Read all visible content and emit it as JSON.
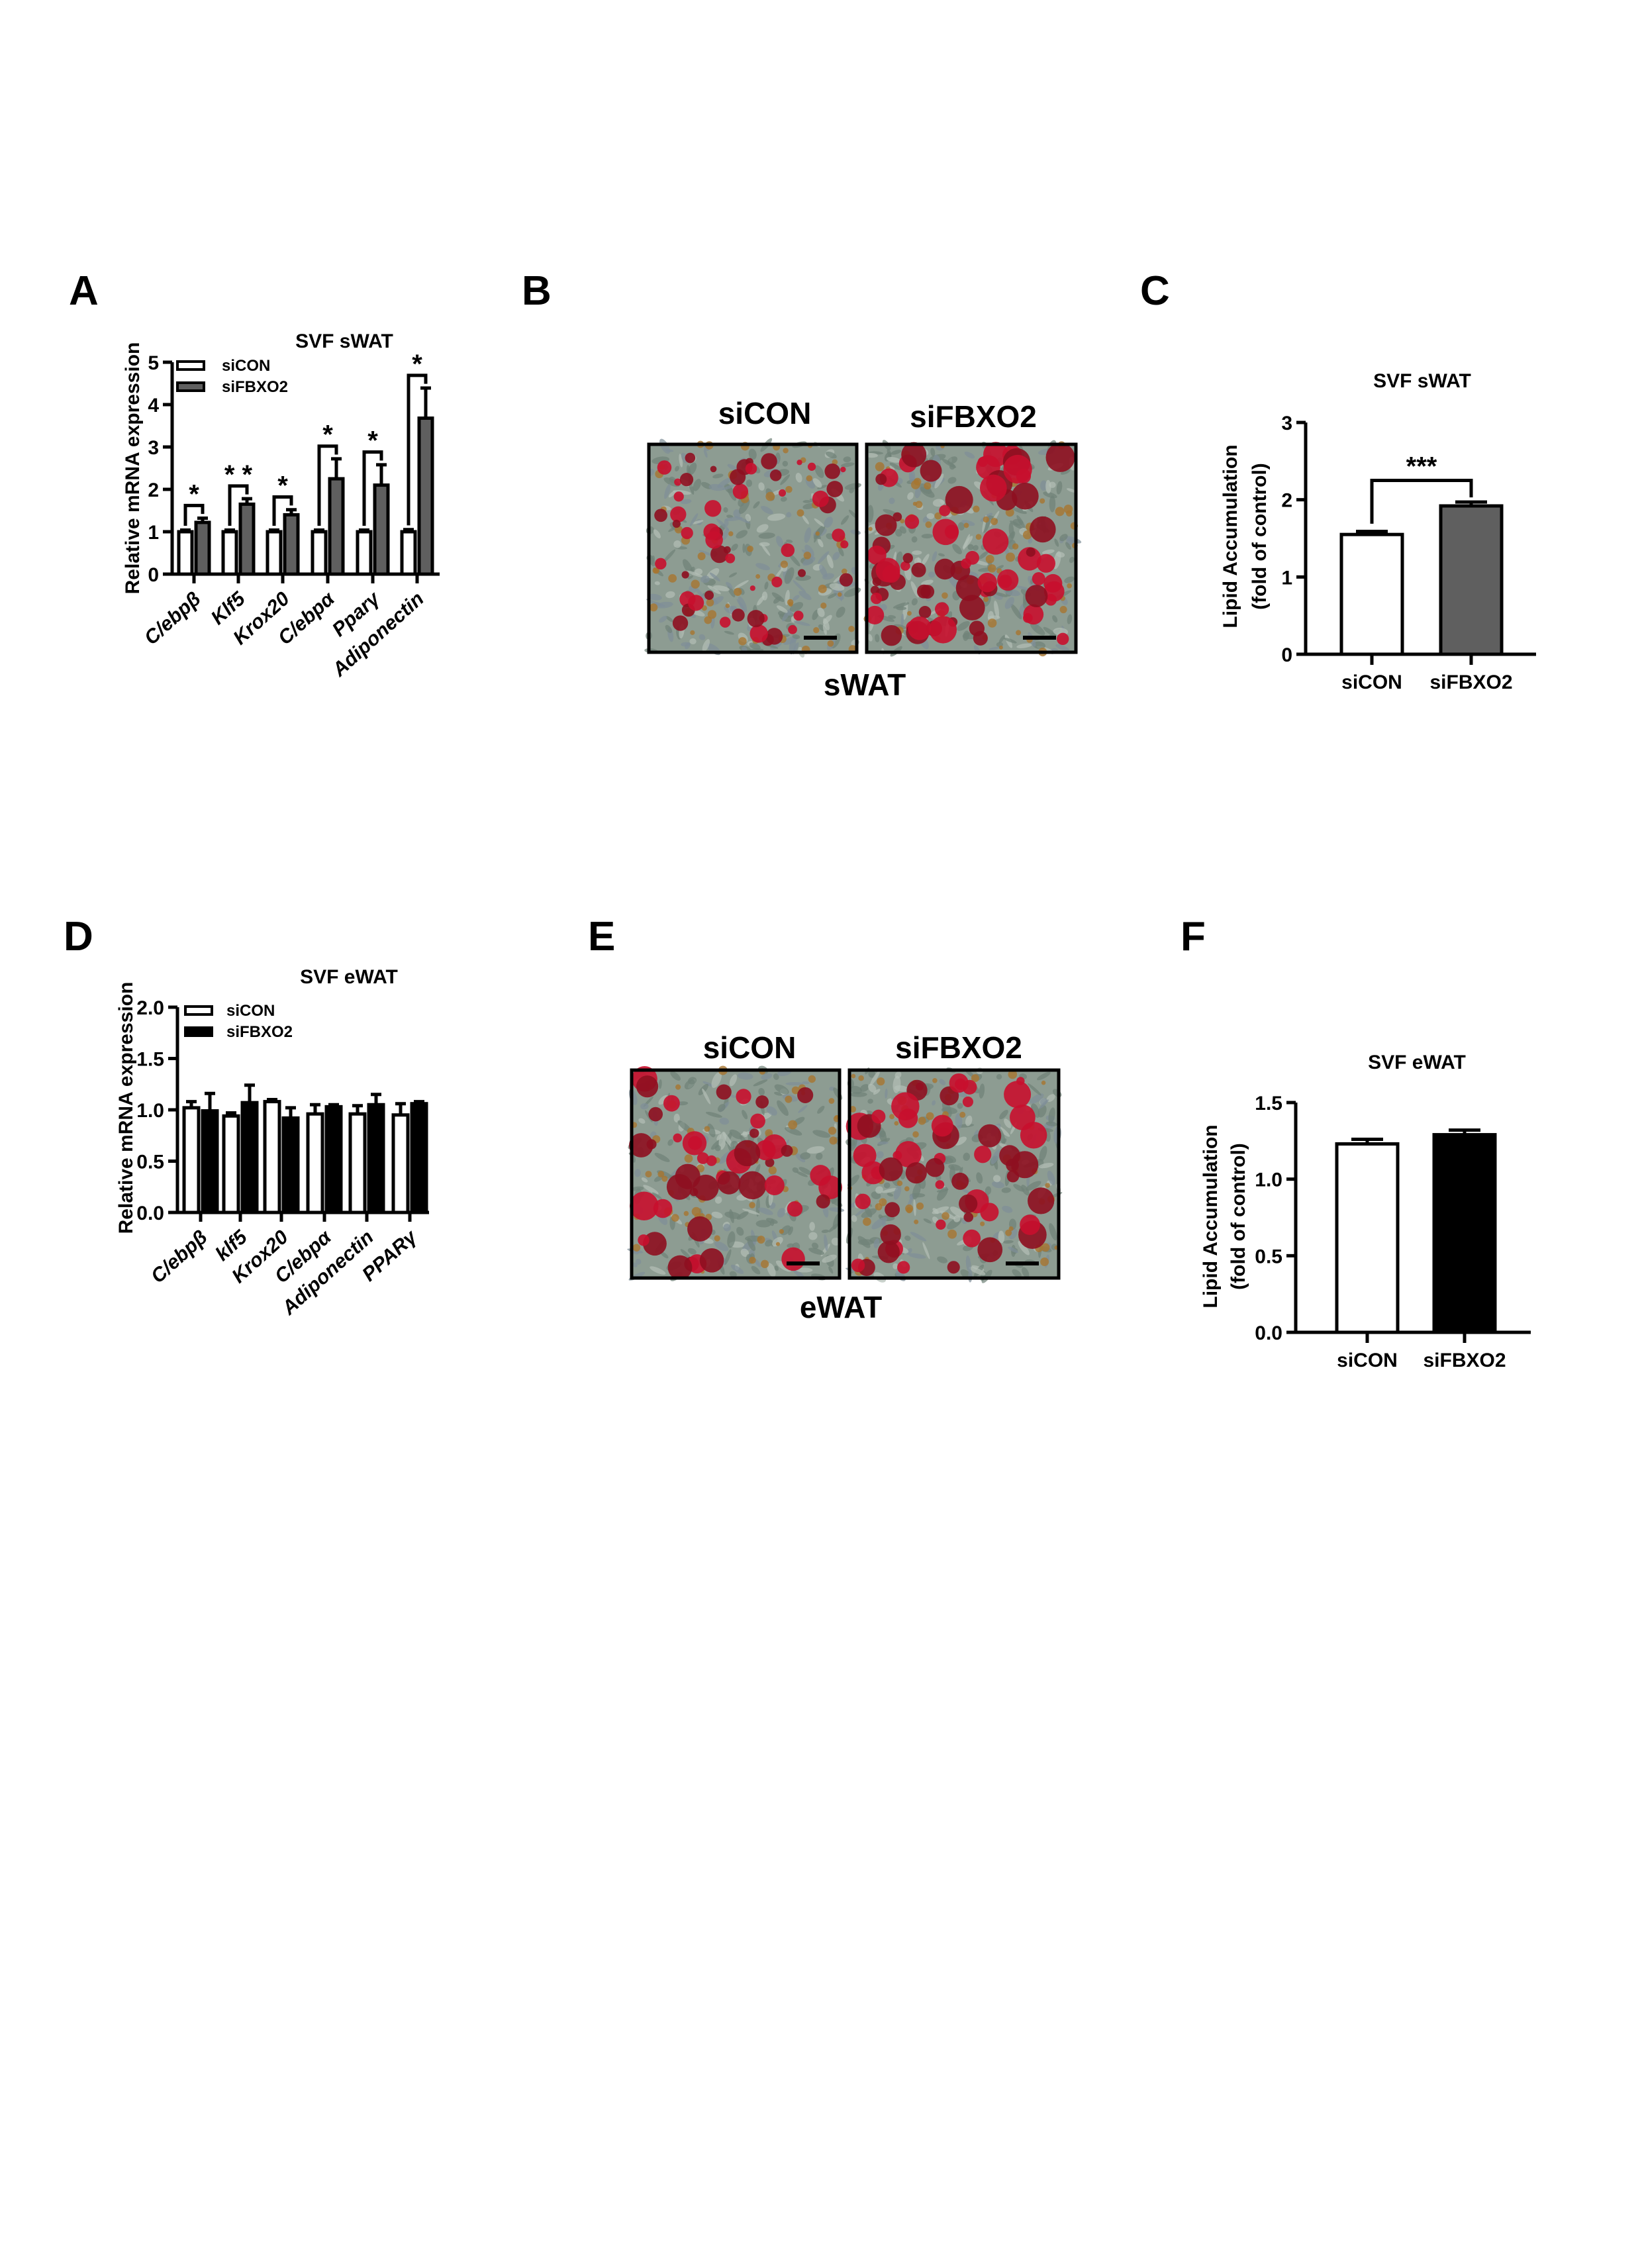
{
  "panels": {
    "A": {
      "letter": "A"
    },
    "B": {
      "letter": "B",
      "left_label": "siCON",
      "right_label": "siFBXO2",
      "caption": "sWAT"
    },
    "C": {
      "letter": "C"
    },
    "D": {
      "letter": "D"
    },
    "E": {
      "letter": "E",
      "left_label": "siCON",
      "right_label": "siFBXO2",
      "caption": "eWAT"
    },
    "F": {
      "letter": "F"
    }
  },
  "colors": {
    "siCON": "#ffffff",
    "siFBXO2_sWAT": "#5f5f5f",
    "siFBXO2_eWAT": "#000000",
    "stain_red": "#c8102e",
    "background_cells": "#8d9c92"
  },
  "chart_data": [
    {
      "id": "A",
      "type": "bar",
      "title": "SVF sWAT",
      "ylabel": "Relative mRNA expression",
      "ylim": [
        0,
        5
      ],
      "yticks": [
        "0",
        "1",
        "2",
        "3",
        "4",
        "5"
      ],
      "categories": [
        "C/ebpβ",
        "Klf5",
        "Krox20",
        "C/ebpα",
        "Pparγ",
        "Adiponectin"
      ],
      "category_italic": true,
      "legend": "top-left",
      "series": [
        {
          "name": "siCON",
          "values": [
            1.0,
            1.0,
            1.0,
            1.0,
            1.0,
            1.0
          ],
          "errors": [
            0.04,
            0.04,
            0.04,
            0.04,
            0.04,
            0.05
          ]
        },
        {
          "name": "siFBXO2",
          "values": [
            1.22,
            1.65,
            1.4,
            2.25,
            2.1,
            3.68
          ],
          "errors": [
            0.1,
            0.13,
            0.12,
            0.47,
            0.48,
            0.71
          ]
        }
      ],
      "significance": [
        "*",
        "* *",
        "*",
        "*",
        "*",
        "*"
      ]
    },
    {
      "id": "C",
      "type": "bar",
      "title": "SVF sWAT",
      "ylabel": [
        "Lipid Accumulation",
        "(fold of control)"
      ],
      "ylim": [
        0,
        3
      ],
      "yticks": [
        "0",
        "1",
        "2",
        "3"
      ],
      "categories": [
        "siCON",
        "siFBXO2"
      ],
      "values": [
        1.55,
        1.92
      ],
      "errors": [
        0.04,
        0.05
      ],
      "significance": "***"
    },
    {
      "id": "D",
      "type": "bar",
      "title": "SVF eWAT",
      "ylabel": "Relative mRNA expression",
      "ylim": [
        0,
        2.0
      ],
      "yticks": [
        "0.0",
        "0.5",
        "1.0",
        "1.5",
        "2.0"
      ],
      "categories": [
        "C/ebpβ",
        "klf5",
        "Krox20",
        "C/ebpα",
        "Adiponectin",
        "PPARγ"
      ],
      "category_italic": true,
      "legend": "top-left",
      "series": [
        {
          "name": "siCON",
          "values": [
            1.02,
            0.94,
            1.08,
            0.96,
            0.96,
            0.95
          ],
          "errors": [
            0.06,
            0.03,
            0.02,
            0.09,
            0.08,
            0.11
          ]
        },
        {
          "name": "siFBXO2",
          "values": [
            0.99,
            1.07,
            0.92,
            1.03,
            1.05,
            1.06
          ],
          "errors": [
            0.17,
            0.17,
            0.1,
            0.02,
            0.1,
            0.02
          ]
        }
      ]
    },
    {
      "id": "F",
      "type": "bar",
      "title": "SVF eWAT",
      "ylabel": [
        "Lipid Accumulation",
        "(fold of control)"
      ],
      "ylim": [
        0,
        1.5
      ],
      "yticks": [
        "0.0",
        "0.5",
        "1.0",
        "1.5"
      ],
      "categories": [
        "siCON",
        "siFBXO2"
      ],
      "values": [
        1.23,
        1.29
      ],
      "errors": [
        0.03,
        0.03
      ]
    }
  ]
}
